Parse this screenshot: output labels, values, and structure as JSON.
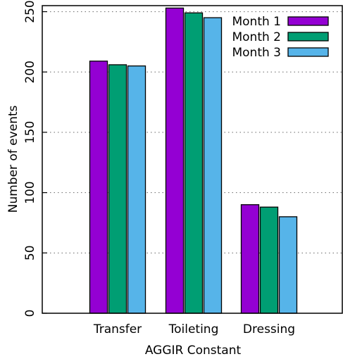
{
  "chart_data": {
    "type": "bar",
    "title": "",
    "xlabel": "AGGIR Constant",
    "ylabel": "Number of events",
    "categories": [
      "Transfer",
      "Toileting",
      "Dressing"
    ],
    "ylim": [
      0,
      255
    ],
    "yticks": [
      0,
      50,
      100,
      150,
      200,
      250
    ],
    "grid": true,
    "legend_position": "top-right",
    "series": [
      {
        "name": "Month 1",
        "color": "#9400D3",
        "values": [
          209,
          253,
          90
        ]
      },
      {
        "name": "Month 2",
        "color": "#009E73",
        "values": [
          206,
          249,
          88
        ]
      },
      {
        "name": "Month 3",
        "color": "#56B4E9",
        "values": [
          205,
          245,
          80
        ]
      }
    ]
  }
}
